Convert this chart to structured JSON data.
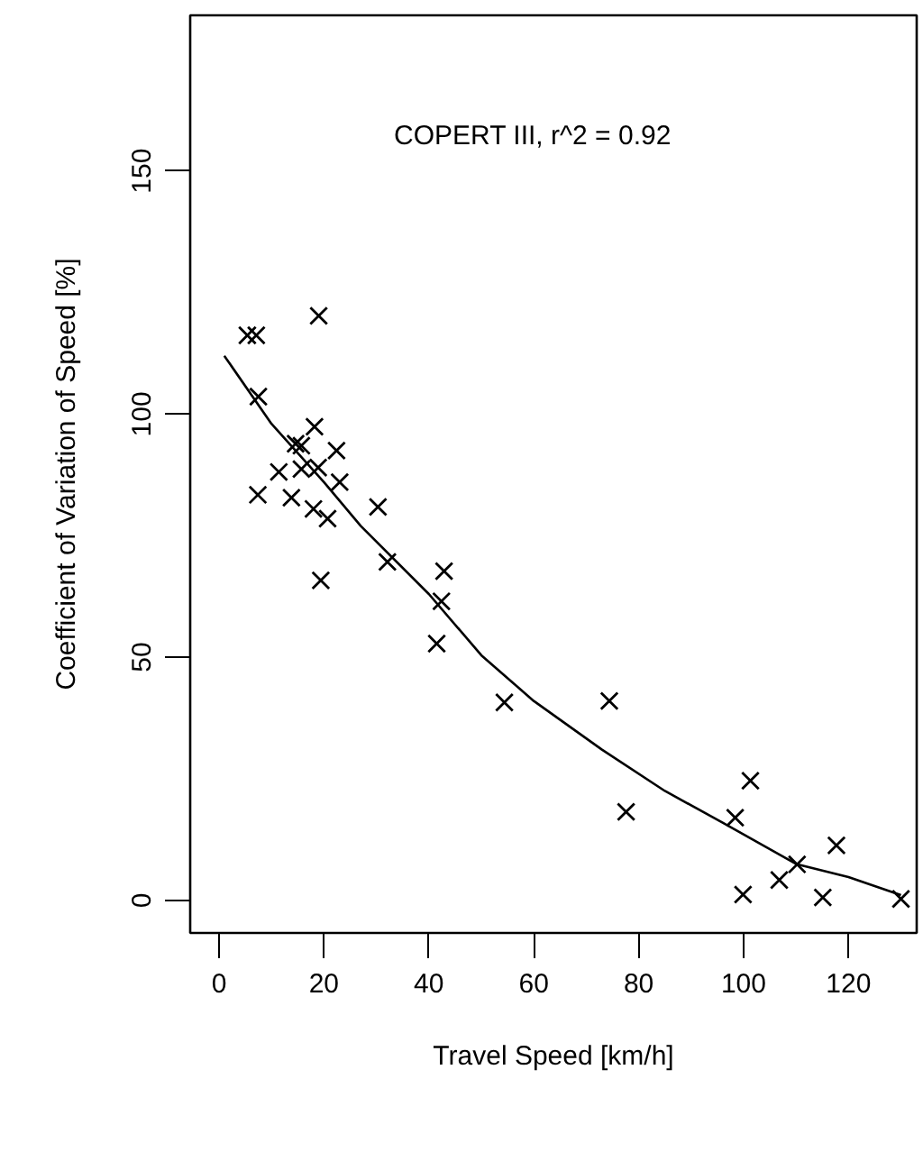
{
  "chart_data": {
    "type": "scatter",
    "xlabel": "Travel Speed [km/h]",
    "ylabel": "Coefficient of Variation of Speed [%]",
    "annotations": [
      "COPERT III, r^2 = 0.92"
    ],
    "grid": false,
    "xlim": [
      -5.5,
      133
    ],
    "ylim": [
      -6.7,
      182
    ],
    "xticks": [
      0,
      20,
      40,
      60,
      80,
      100,
      120
    ],
    "yticks": [
      0,
      50,
      100,
      150
    ],
    "series": [
      {
        "color": "#000000",
        "marker": "cross",
        "x": [
          5.4,
          7.1,
          19.0,
          7.5,
          18.2,
          14.6,
          15.7,
          22.4,
          11.4,
          15.7,
          18.9,
          23.0,
          7.4,
          13.8,
          18.0,
          20.7,
          30.3,
          19.4,
          32.1,
          42.9,
          42.4,
          41.5,
          54.4,
          74.4,
          77.6,
          98.4,
          101.3,
          99.9,
          106.8,
          110.2,
          115.1,
          117.7,
          130.0
        ],
        "values": [
          116.2,
          116.2,
          120.2,
          103.6,
          97.4,
          93.9,
          93.5,
          92.5,
          88.1,
          88.7,
          89.0,
          86.0,
          83.4,
          82.8,
          80.5,
          78.5,
          80.9,
          65.8,
          69.6,
          67.7,
          61.5,
          52.8,
          40.7,
          41.0,
          18.2,
          17.0,
          24.6,
          1.2,
          4.2,
          7.4,
          0.6,
          11.3,
          0.3
        ]
      },
      {
        "type": "line",
        "color": "#000000",
        "line_style": "solid",
        "x": [
          1,
          10,
          20,
          27,
          40,
          50,
          60,
          73,
          85,
          96,
          110,
          120,
          130
        ],
        "values": [
          112,
          98,
          86,
          77,
          63,
          50.4,
          41,
          31,
          22.5,
          16,
          7.5,
          4.8,
          1.1
        ]
      }
    ]
  }
}
